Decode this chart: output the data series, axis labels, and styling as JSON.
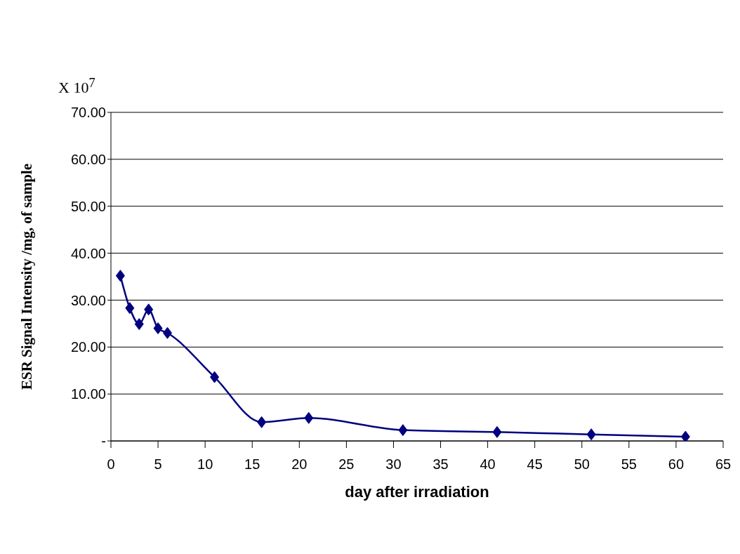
{
  "chart_data": {
    "type": "line",
    "xlabel": "day after irradiation",
    "ylabel": "ESR Signal Intensity /mg, of sample",
    "annotations": [
      "X 10$^{7}$"
    ],
    "x": [
      1,
      2,
      3,
      4,
      5,
      6,
      11,
      16,
      21,
      31,
      41,
      51,
      61
    ],
    "series": [
      {
        "color": "#000080",
        "values": [
          35.2,
          28.3,
          24.9,
          28.0,
          24.0,
          23.0,
          13.6,
          4.0,
          4.9,
          2.3,
          1.9,
          1.4,
          0.9
        ]
      }
    ],
    "xlim": [
      0,
      65
    ],
    "xticks": [
      0,
      5,
      10,
      15,
      20,
      25,
      30,
      35,
      40,
      45,
      50,
      55,
      60,
      65
    ],
    "ylim": [
      0,
      70
    ],
    "yticks": [
      {
        "value": 0,
        "label": "-"
      },
      {
        "value": 10,
        "label": "10.00"
      },
      {
        "value": 20,
        "label": "20.00"
      },
      {
        "value": 30,
        "label": "30.00"
      },
      {
        "value": 40,
        "label": "40.00"
      },
      {
        "value": 50,
        "label": "50.00"
      },
      {
        "value": 60,
        "label": "60.00"
      },
      {
        "value": 70,
        "label": "70.00"
      }
    ],
    "grid": "y",
    "legend": false,
    "marker": "diamond",
    "line_style": "solid"
  }
}
